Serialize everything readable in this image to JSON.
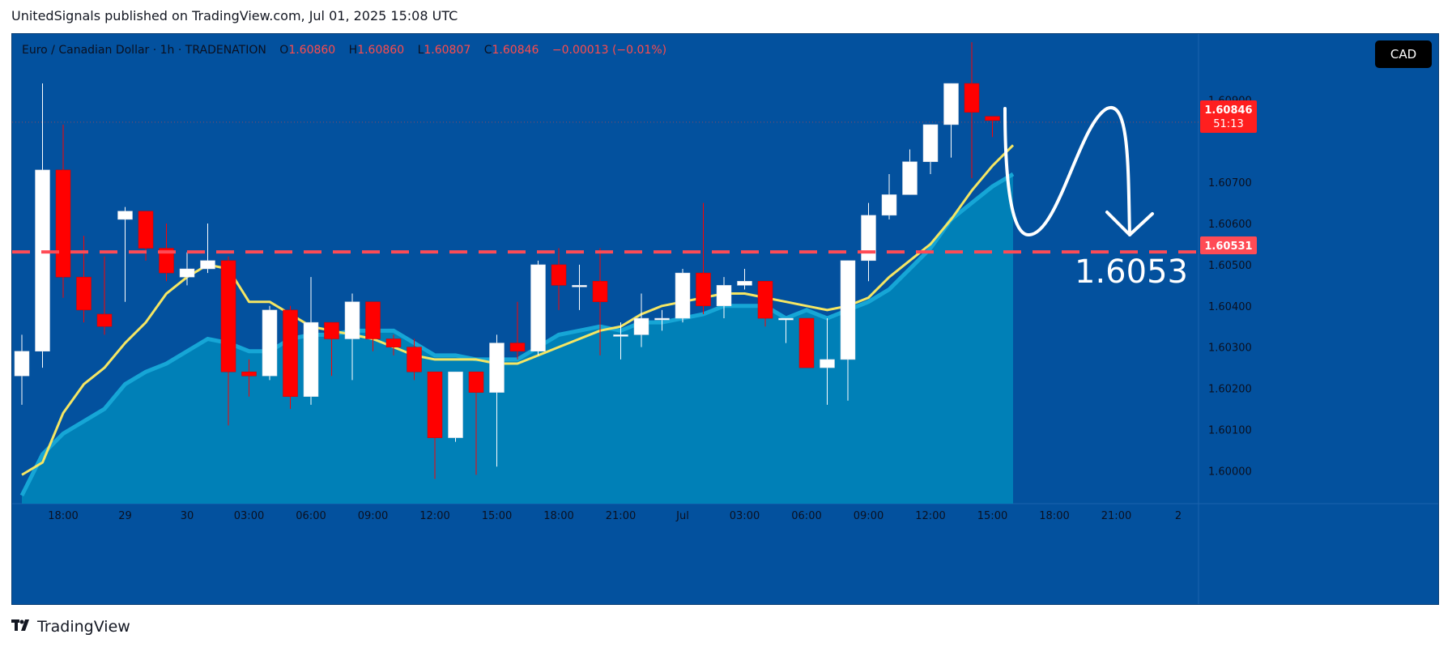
{
  "caption": "UnitedSignals published on TradingView.com, Jul 01, 2025 15:08 UTC",
  "legend": {
    "symbol": "Euro / Canadian Dollar · 1h · TRADENATION",
    "o_label": "O",
    "o_value": "1.60860",
    "h_label": "H",
    "h_value": "1.60860",
    "l_label": "L",
    "l_value": "1.60807",
    "c_label": "C",
    "c_value": "1.60846",
    "change": "−0.00013 (−0.01%)"
  },
  "currency_badge": "CAD",
  "price_tag": {
    "price": "1.60846",
    "countdown": "51:13"
  },
  "level_tag": "1.60531",
  "target_annotation": "1.6053",
  "footer_brand": "TradingView",
  "colors": {
    "background": "#03519e",
    "up_candle": "#ffffff",
    "down_candle": "#ff0000",
    "ma_line": "#f5e663",
    "area_fill": "#0083b8",
    "level_line": "#ff4b55",
    "axis_text": "#0b1020"
  },
  "chart_data": {
    "type": "candlestick",
    "timeframe": "1h",
    "ylim": [
      1.5992,
      1.6106
    ],
    "y_ticks": [
      1.6,
      1.601,
      1.602,
      1.603,
      1.604,
      1.605,
      1.606,
      1.607,
      1.609
    ],
    "y_tick_labels": [
      "1.60000",
      "1.60100",
      "1.60200",
      "1.60300",
      "1.60400",
      "1.60500",
      "1.60600",
      "1.60700",
      "1.60900"
    ],
    "x_tick_labels": [
      {
        "label": "18:00",
        "bar": 2
      },
      {
        "label": "29",
        "bar": 5
      },
      {
        "label": "30",
        "bar": 8
      },
      {
        "label": "03:00",
        "bar": 11
      },
      {
        "label": "06:00",
        "bar": 14
      },
      {
        "label": "09:00",
        "bar": 17
      },
      {
        "label": "12:00",
        "bar": 20
      },
      {
        "label": "15:00",
        "bar": 23
      },
      {
        "label": "18:00",
        "bar": 26
      },
      {
        "label": "21:00",
        "bar": 29
      },
      {
        "label": "Jul",
        "bar": 32
      },
      {
        "label": "03:00",
        "bar": 35
      },
      {
        "label": "06:00",
        "bar": 38
      },
      {
        "label": "09:00",
        "bar": 41
      },
      {
        "label": "12:00",
        "bar": 44
      },
      {
        "label": "15:00",
        "bar": 47
      },
      {
        "label": "18:00",
        "bar": 50
      },
      {
        "label": "21:00",
        "bar": 53
      },
      {
        "label": "2",
        "bar": 56
      }
    ],
    "candles": [
      {
        "o": 1.6023,
        "h": 1.6033,
        "l": 1.6016,
        "c": 1.6029
      },
      {
        "o": 1.6029,
        "h": 1.6094,
        "l": 1.6025,
        "c": 1.6073
      },
      {
        "o": 1.6073,
        "h": 1.6084,
        "l": 1.6042,
        "c": 1.6047
      },
      {
        "o": 1.6047,
        "h": 1.6057,
        "l": 1.6036,
        "c": 1.6039
      },
      {
        "o": 1.6038,
        "h": 1.6052,
        "l": 1.6033,
        "c": 1.6035
      },
      {
        "o": 1.6061,
        "h": 1.6064,
        "l": 1.6041,
        "c": 1.6063
      },
      {
        "o": 1.6063,
        "h": 1.6063,
        "l": 1.6051,
        "c": 1.6054
      },
      {
        "o": 1.6054,
        "h": 1.606,
        "l": 1.6046,
        "c": 1.6048
      },
      {
        "o": 1.6047,
        "h": 1.6053,
        "l": 1.6045,
        "c": 1.6049
      },
      {
        "o": 1.6049,
        "h": 1.606,
        "l": 1.6048,
        "c": 1.6051
      },
      {
        "o": 1.6051,
        "h": 1.6052,
        "l": 1.6011,
        "c": 1.6024
      },
      {
        "o": 1.6024,
        "h": 1.6027,
        "l": 1.6018,
        "c": 1.6023
      },
      {
        "o": 1.6023,
        "h": 1.604,
        "l": 1.6022,
        "c": 1.6039
      },
      {
        "o": 1.6039,
        "h": 1.604,
        "l": 1.6015,
        "c": 1.6018
      },
      {
        "o": 1.6018,
        "h": 1.6047,
        "l": 1.6016,
        "c": 1.6036
      },
      {
        "o": 1.6036,
        "h": 1.6036,
        "l": 1.6023,
        "c": 1.6032
      },
      {
        "o": 1.6032,
        "h": 1.6043,
        "l": 1.6022,
        "c": 1.6041
      },
      {
        "o": 1.6041,
        "h": 1.6041,
        "l": 1.6029,
        "c": 1.6032
      },
      {
        "o": 1.6032,
        "h": 1.6033,
        "l": 1.6028,
        "c": 1.603
      },
      {
        "o": 1.603,
        "h": 1.6032,
        "l": 1.6022,
        "c": 1.6024
      },
      {
        "o": 1.6024,
        "h": 1.6024,
        "l": 1.5998,
        "c": 1.6008
      },
      {
        "o": 1.6008,
        "h": 1.6024,
        "l": 1.6007,
        "c": 1.6024
      },
      {
        "o": 1.6024,
        "h": 1.6024,
        "l": 1.5999,
        "c": 1.6019
      },
      {
        "o": 1.6019,
        "h": 1.6033,
        "l": 1.6001,
        "c": 1.6031
      },
      {
        "o": 1.6031,
        "h": 1.6041,
        "l": 1.6027,
        "c": 1.6029
      },
      {
        "o": 1.6029,
        "h": 1.6051,
        "l": 1.6028,
        "c": 1.605
      },
      {
        "o": 1.605,
        "h": 1.6054,
        "l": 1.6039,
        "c": 1.6045
      },
      {
        "o": 1.6045,
        "h": 1.605,
        "l": 1.6039,
        "c": 1.6045
      },
      {
        "o": 1.6046,
        "h": 1.6054,
        "l": 1.6028,
        "c": 1.6041
      },
      {
        "o": 1.6033,
        "h": 1.6036,
        "l": 1.6027,
        "c": 1.6033
      },
      {
        "o": 1.6033,
        "h": 1.6043,
        "l": 1.603,
        "c": 1.6037
      },
      {
        "o": 1.6037,
        "h": 1.6039,
        "l": 1.6034,
        "c": 1.6037
      },
      {
        "o": 1.6037,
        "h": 1.6049,
        "l": 1.6036,
        "c": 1.6048
      },
      {
        "o": 1.6048,
        "h": 1.6065,
        "l": 1.6038,
        "c": 1.604
      },
      {
        "o": 1.604,
        "h": 1.6047,
        "l": 1.6037,
        "c": 1.6045
      },
      {
        "o": 1.6045,
        "h": 1.6049,
        "l": 1.6044,
        "c": 1.6046
      },
      {
        "o": 1.6046,
        "h": 1.6046,
        "l": 1.6035,
        "c": 1.6037
      },
      {
        "o": 1.6037,
        "h": 1.6037,
        "l": 1.6031,
        "c": 1.6037
      },
      {
        "o": 1.6037,
        "h": 1.6037,
        "l": 1.6025,
        "c": 1.6025
      },
      {
        "o": 1.6025,
        "h": 1.6037,
        "l": 1.6016,
        "c": 1.6027
      },
      {
        "o": 1.6027,
        "h": 1.6051,
        "l": 1.6017,
        "c": 1.6051
      },
      {
        "o": 1.6051,
        "h": 1.6065,
        "l": 1.6046,
        "c": 1.6062
      },
      {
        "o": 1.6062,
        "h": 1.6072,
        "l": 1.6061,
        "c": 1.6067
      },
      {
        "o": 1.6067,
        "h": 1.6078,
        "l": 1.6067,
        "c": 1.6075
      },
      {
        "o": 1.6075,
        "h": 1.6084,
        "l": 1.6072,
        "c": 1.6084
      },
      {
        "o": 1.6084,
        "h": 1.6094,
        "l": 1.6076,
        "c": 1.6094
      },
      {
        "o": 1.6094,
        "h": 1.6104,
        "l": 1.6071,
        "c": 1.6087
      },
      {
        "o": 1.6086,
        "h": 1.6086,
        "l": 1.6081,
        "c": 1.6085
      }
    ],
    "ma_line": [
      1.5999,
      1.6002,
      1.6014,
      1.6021,
      1.6025,
      1.6031,
      1.6036,
      1.6043,
      1.6047,
      1.605,
      1.6049,
      1.6041,
      1.6041,
      1.6038,
      1.6035,
      1.6034,
      1.6033,
      1.6032,
      1.603,
      1.6028,
      1.6027,
      1.6027,
      1.6027,
      1.6026,
      1.6026,
      1.6028,
      1.603,
      1.6032,
      1.6034,
      1.6035,
      1.6038,
      1.604,
      1.6041,
      1.6042,
      1.6043,
      1.6043,
      1.6042,
      1.6041,
      1.604,
      1.6039,
      1.604,
      1.6042,
      1.6047,
      1.6051,
      1.6055,
      1.6061,
      1.6068,
      1.6074,
      1.6079
    ],
    "area_top": [
      1.5994,
      1.6004,
      1.6009,
      1.6012,
      1.6015,
      1.6021,
      1.6024,
      1.6026,
      1.6029,
      1.6032,
      1.6031,
      1.6029,
      1.6029,
      1.6032,
      1.6033,
      1.6033,
      1.6034,
      1.6034,
      1.6034,
      1.6031,
      1.6028,
      1.6028,
      1.6027,
      1.6027,
      1.6027,
      1.603,
      1.6033,
      1.6034,
      1.6035,
      1.6034,
      1.6036,
      1.6036,
      1.6037,
      1.6038,
      1.604,
      1.604,
      1.604,
      1.6037,
      1.6039,
      1.6037,
      1.6039,
      1.6041,
      1.6044,
      1.6049,
      1.6054,
      1.6061,
      1.6065,
      1.6069,
      1.6072
    ],
    "horizontal_level": 1.60531,
    "current_price": 1.60846
  }
}
